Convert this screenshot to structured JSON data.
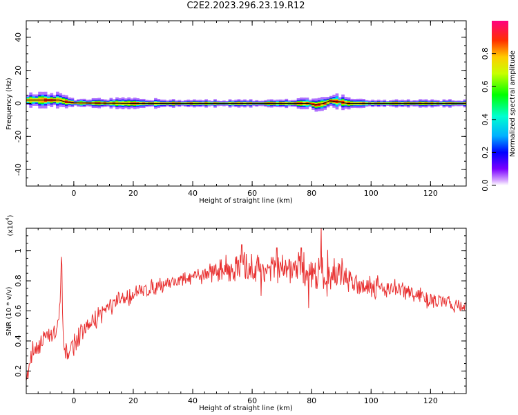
{
  "title": "C2E2.2023.296.23.19.R12",
  "chart_data": [
    {
      "type": "heatmap",
      "xlabel": "Height of straight line (km)",
      "ylabel": "Frequency (Hz)",
      "xlim": [
        -16,
        132
      ],
      "ylim": [
        -50,
        50
      ],
      "xticks": [
        0,
        20,
        40,
        60,
        80,
        100,
        120
      ],
      "yticks": [
        -40,
        -20,
        0,
        20,
        40
      ],
      "colorbar": {
        "label": "Normalized spectral amplitude",
        "range": [
          0,
          1
        ],
        "ticks": [
          0.0,
          0.2,
          0.4,
          0.6,
          0.8
        ]
      },
      "peak_frequency_track": [
        [
          -16,
          2
        ],
        [
          -10,
          2
        ],
        [
          -5,
          2
        ],
        [
          -3,
          1
        ],
        [
          0,
          0.3
        ],
        [
          20,
          0
        ],
        [
          50,
          0
        ],
        [
          60,
          0
        ],
        [
          70,
          0
        ],
        [
          79,
          0
        ],
        [
          81,
          -1
        ],
        [
          84,
          0
        ],
        [
          86,
          1.5
        ],
        [
          89,
          1
        ],
        [
          92,
          0
        ],
        [
          100,
          0
        ],
        [
          132,
          0
        ]
      ],
      "spread_hz": [
        [
          -16,
          4
        ],
        [
          -5,
          4
        ],
        [
          0,
          2
        ],
        [
          15,
          3
        ],
        [
          40,
          2
        ],
        [
          60,
          2
        ],
        [
          80,
          3
        ],
        [
          90,
          4
        ],
        [
          100,
          2
        ],
        [
          132,
          2
        ]
      ]
    },
    {
      "type": "line",
      "xlabel": "Height of straight line (km)",
      "ylabel": "SNR (10 * v/v)",
      "multiplier": "(x10",
      "multiplier_exp": "4",
      "xlim": [
        -16,
        132
      ],
      "ylim": [
        0.05,
        1.15
      ],
      "xticks": [
        0,
        20,
        40,
        60,
        80,
        100,
        120
      ],
      "yticks": [
        0.2,
        0.4,
        0.6,
        0.8,
        1.0
      ],
      "trend": [
        [
          -16,
          0.15
        ],
        [
          -14,
          0.33
        ],
        [
          -10,
          0.42
        ],
        [
          -6,
          0.45
        ],
        [
          -4.6,
          0.6
        ],
        [
          -4.1,
          1.02
        ],
        [
          -3.7,
          0.45
        ],
        [
          -3,
          0.3
        ],
        [
          0,
          0.38
        ],
        [
          5,
          0.5
        ],
        [
          10,
          0.6
        ],
        [
          15,
          0.66
        ],
        [
          20,
          0.71
        ],
        [
          30,
          0.78
        ],
        [
          40,
          0.82
        ],
        [
          50,
          0.88
        ],
        [
          60,
          0.88
        ],
        [
          70,
          0.88
        ],
        [
          80,
          0.86
        ],
        [
          90,
          0.84
        ],
        [
          95,
          0.78
        ],
        [
          100,
          0.77
        ],
        [
          110,
          0.74
        ],
        [
          120,
          0.67
        ],
        [
          132,
          0.63
        ]
      ],
      "noise": [
        [
          -16,
          0.06
        ],
        [
          0,
          0.06
        ],
        [
          40,
          0.04
        ],
        [
          48,
          0.06
        ],
        [
          55,
          0.1
        ],
        [
          70,
          0.08
        ],
        [
          85,
          0.12
        ],
        [
          95,
          0.07
        ],
        [
          110,
          0.06
        ],
        [
          132,
          0.04
        ]
      ],
      "spikes": [
        [
          56.5,
          1.04
        ],
        [
          68.3,
          1.02
        ],
        [
          76.5,
          1.02
        ],
        [
          83.2,
          1.15
        ],
        [
          79,
          0.62
        ],
        [
          63,
          0.7
        ]
      ]
    }
  ]
}
